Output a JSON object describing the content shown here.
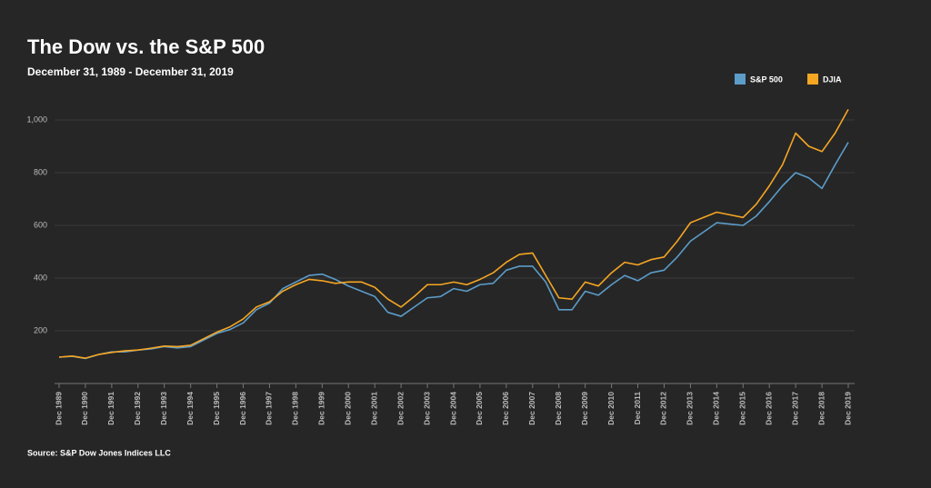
{
  "chart_data": {
    "type": "line",
    "title": "The Dow vs. the S&P 500",
    "subtitle": "December 31, 1989 - December 31, 2019",
    "source": "Source: S&P Dow Jones Indices LLC",
    "categories": [
      "Dec 1989",
      null,
      "Dec 1990",
      null,
      "Dec 1991",
      null,
      "Dec 1992",
      null,
      "Dec 1993",
      null,
      "Dec 1994",
      null,
      "Dec 1995",
      null,
      "Dec 1996",
      null,
      "Dec 1997",
      null,
      "Dec 1998",
      null,
      "Dec 1999",
      null,
      "Dec 2000",
      null,
      "Dec 2001",
      null,
      "Dec 2002",
      null,
      "Dec 2003",
      null,
      "Dec 2004",
      null,
      "Dec 2005",
      null,
      "Dec 2006",
      null,
      "Dec 2007",
      null,
      "Dec 2008",
      null,
      "Dec 2009",
      null,
      "Dec 2010",
      null,
      "Dec 2011",
      null,
      "Dec 2012",
      null,
      "Dec 2013",
      null,
      "Dec 2014",
      null,
      "Dec 2015",
      null,
      "Dec 2016",
      null,
      "Dec 2017",
      null,
      "Dec 2018",
      null,
      "Dec 2019"
    ],
    "series": [
      {
        "name": "S&P 500",
        "color": "#5b9cc9",
        "values": [
          100,
          103,
          95,
          110,
          120,
          120,
          127,
          131,
          140,
          135,
          140,
          165,
          190,
          205,
          230,
          280,
          305,
          360,
          385,
          410,
          415,
          395,
          370,
          350,
          330,
          270,
          255,
          290,
          325,
          330,
          360,
          350,
          375,
          380,
          430,
          445,
          445,
          385,
          280,
          280,
          350,
          335,
          375,
          410,
          390,
          420,
          430,
          480,
          540,
          575,
          610,
          605,
          600,
          635,
          690,
          750,
          800,
          780,
          740,
          830,
          915
        ]
      },
      {
        "name": "DJIA",
        "color": "#f5a623",
        "values": [
          100,
          104,
          96,
          110,
          118,
          124,
          127,
          134,
          142,
          140,
          145,
          170,
          195,
          215,
          245,
          290,
          310,
          350,
          375,
          395,
          390,
          380,
          385,
          385,
          365,
          320,
          290,
          330,
          375,
          375,
          385,
          375,
          395,
          420,
          460,
          490,
          495,
          410,
          325,
          320,
          385,
          370,
          420,
          460,
          450,
          470,
          480,
          540,
          610,
          630,
          650,
          640,
          630,
          680,
          750,
          830,
          950,
          900,
          880,
          950,
          1040
        ]
      }
    ],
    "ylim": [
      0,
      1100
    ],
    "yticks": [
      200,
      400,
      600,
      800,
      {
        "value": 1000,
        "label": "1,000"
      }
    ],
    "grid": true,
    "legend": "top-right"
  }
}
